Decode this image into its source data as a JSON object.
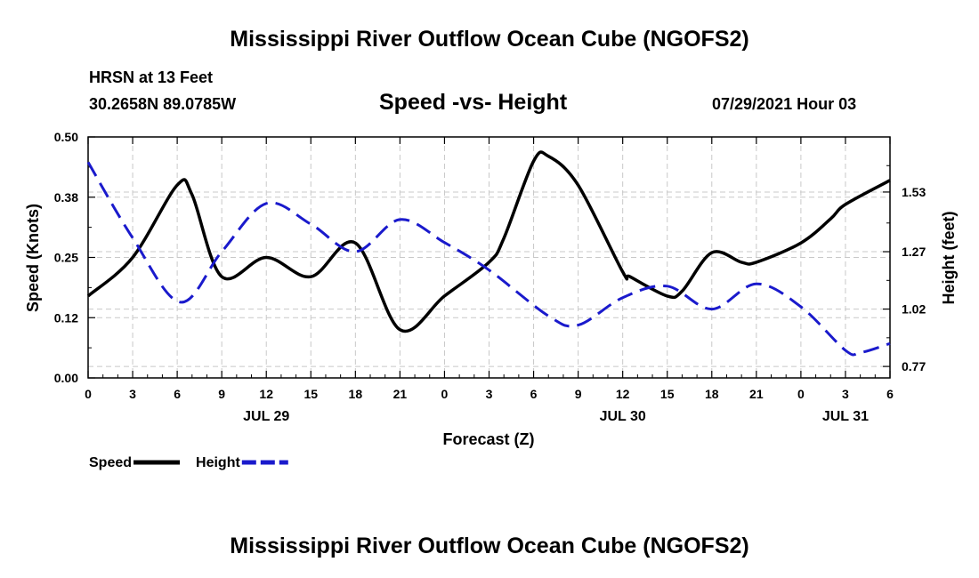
{
  "page": {
    "title_top": "Mississippi River Outflow Ocean Cube (NGOFS2)",
    "title_bottom": "Mississippi River Outflow Ocean Cube (NGOFS2)",
    "station": "HRSN at 13 Feet",
    "coords": "30.2658N  89.0785W",
    "datetime": "07/29/2021 Hour 03"
  },
  "colors": {
    "speed": "#000000",
    "height": "#1a1acc",
    "grid": "#c8c8c8"
  },
  "chart_data": {
    "type": "line",
    "title": "Speed -vs- Height",
    "xlabel": "Forecast (Z)",
    "ylabel": "Speed (Knots)",
    "y2label": "Height (feet)",
    "x_hours": [
      0,
      54
    ],
    "x_ticks": [
      "0",
      "3",
      "6",
      "9",
      "12",
      "15",
      "18",
      "21",
      "0",
      "3",
      "6",
      "9",
      "12",
      "15",
      "18",
      "21",
      "0",
      "3",
      "6"
    ],
    "date_labels": [
      {
        "label": "JUL 29",
        "hour": 12
      },
      {
        "label": "JUL 30",
        "hour": 36
      },
      {
        "label": "JUL 31",
        "hour": 51
      }
    ],
    "ylim": [
      0,
      0.5
    ],
    "y_ticks": [
      "0.00",
      "0.12",
      "0.25",
      "0.38",
      "0.50"
    ],
    "y2lim": [
      0.72,
      1.77
    ],
    "y2_ticks": [
      "0.77",
      "1.02",
      "1.27",
      "1.53"
    ],
    "series": [
      {
        "name": "Speed",
        "axis": "left",
        "x": [
          0,
          3,
          6,
          7,
          9,
          12,
          15,
          18,
          21,
          24,
          27,
          28,
          30,
          31,
          33,
          36,
          36.5,
          39,
          40,
          42,
          44,
          45,
          48,
          50,
          51,
          54
        ],
        "values": [
          0.17,
          0.25,
          0.4,
          0.38,
          0.21,
          0.25,
          0.21,
          0.28,
          0.1,
          0.17,
          0.24,
          0.29,
          0.45,
          0.46,
          0.4,
          0.22,
          0.21,
          0.17,
          0.18,
          0.26,
          0.24,
          0.24,
          0.28,
          0.33,
          0.36,
          0.41
        ]
      },
      {
        "name": "Height",
        "axis": "right",
        "x": [
          0,
          3,
          6.2,
          9,
          12,
          15,
          18,
          21,
          24,
          27,
          31,
          33,
          36,
          39,
          42,
          45,
          48,
          51,
          52,
          54
        ],
        "values": [
          1.66,
          1.33,
          1.05,
          1.27,
          1.48,
          1.39,
          1.27,
          1.41,
          1.31,
          1.19,
          0.99,
          0.95,
          1.07,
          1.12,
          1.02,
          1.13,
          1.03,
          0.84,
          0.83,
          0.87
        ]
      }
    ],
    "legend": [
      {
        "label": "Speed",
        "series": "Speed"
      },
      {
        "label": "Height",
        "series": "Height"
      }
    ],
    "legend_position": "bottom-left",
    "grid": true
  }
}
